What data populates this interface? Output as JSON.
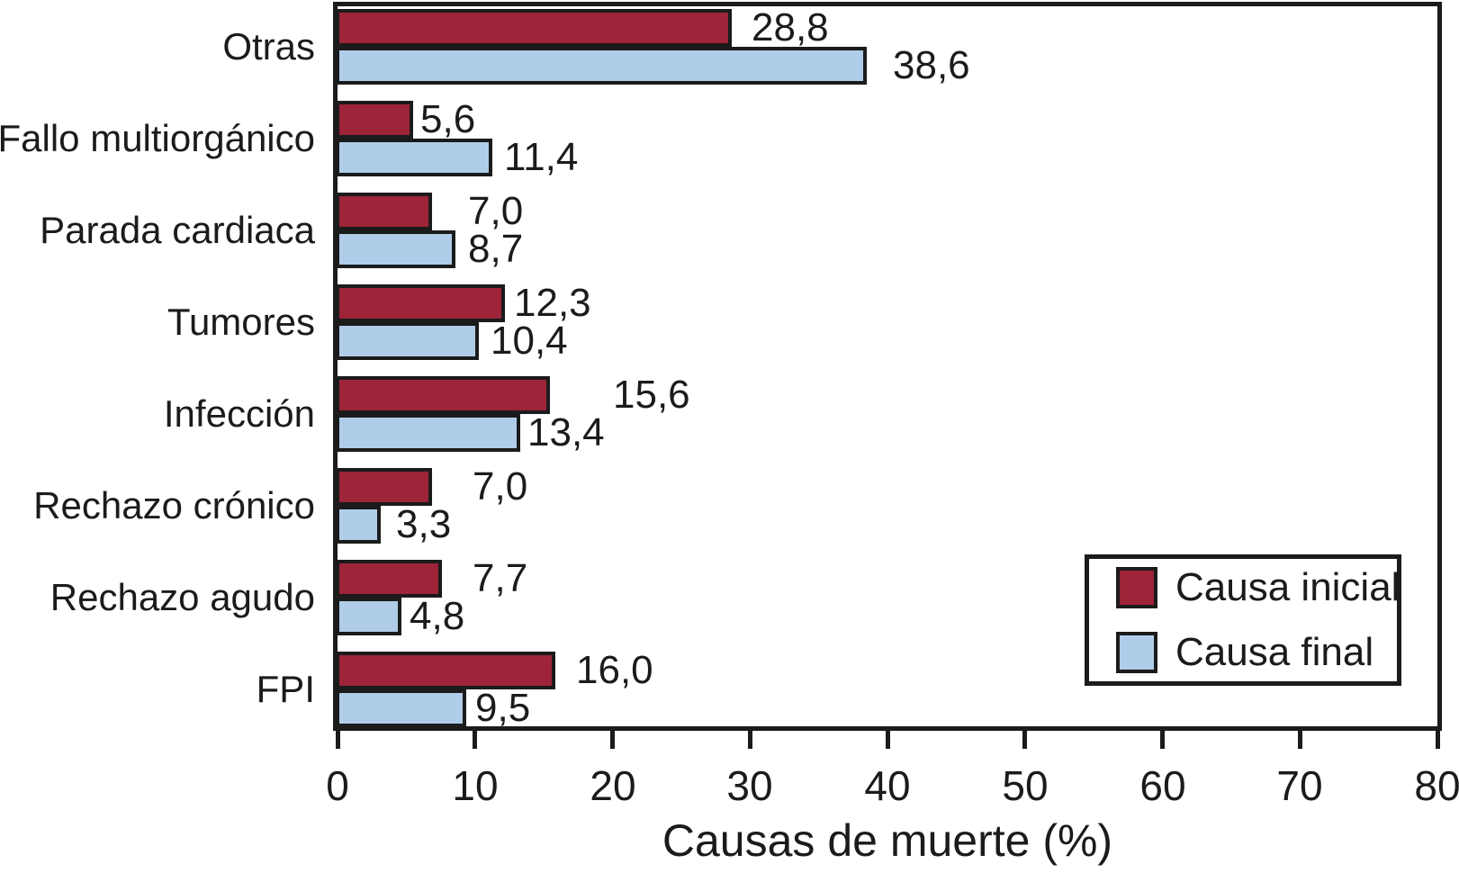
{
  "chart_data": {
    "type": "bar",
    "orientation": "horizontal",
    "xlabel": "Causas de muerte (%)",
    "xlim": [
      0,
      80
    ],
    "xticks": [
      0,
      10,
      20,
      30,
      40,
      50,
      60,
      70,
      80
    ],
    "xtick_labels": [
      "0",
      "10",
      "20",
      "30",
      "40",
      "50",
      "60",
      "70",
      "80"
    ],
    "categories": [
      "Otras",
      "Fallo multiorgánico",
      "Parada cardiaca",
      "Tumores",
      "Infección",
      "Rechazo crónico",
      "Rechazo agudo",
      "FPI"
    ],
    "series": [
      {
        "name": "Causa inicial",
        "color": "#9E2439",
        "values": [
          28.8,
          5.6,
          7.0,
          12.3,
          15.6,
          7.0,
          7.7,
          16.0
        ],
        "value_labels": [
          "28,8",
          "5,6",
          "7,0",
          "12,3",
          "15,6",
          "7,0",
          "7,7",
          "16,0"
        ]
      },
      {
        "name": "Causa final",
        "color": "#AFCDE9",
        "values": [
          38.6,
          11.4,
          8.7,
          10.4,
          13.4,
          3.3,
          4.8,
          9.5
        ],
        "value_labels": [
          "38,6",
          "11,4",
          "8,7",
          "10,4",
          "13,4",
          "3,3",
          "4,8",
          "9,5"
        ]
      }
    ],
    "bar_outline_color": "#1B1B1B",
    "axis_color": "#1B1B1B",
    "grid": false,
    "legend": {
      "position": "right-lower",
      "items": [
        "Causa inicial",
        "Causa final"
      ]
    }
  }
}
